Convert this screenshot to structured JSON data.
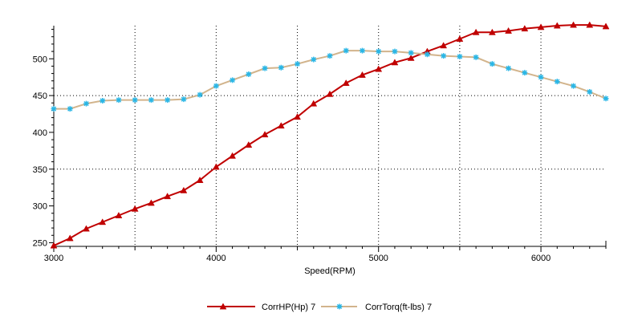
{
  "chart_data": {
    "type": "line",
    "xlabel": "Speed(RPM)",
    "ylabel": "",
    "xlim": [
      3000,
      6400
    ],
    "ylim": [
      245,
      545
    ],
    "x_ticks": [
      3000,
      4000,
      5000,
      6000
    ],
    "y_ticks": [
      250,
      300,
      350,
      400,
      450,
      500
    ],
    "grid": "dotted vertical at 3500,4000,4500,5000,5500,6000; dotted horizontal at 350,450",
    "legend_position": "bottom",
    "series": [
      {
        "name": "CorrHP(Hp)  7",
        "color": "#c00000",
        "marker": "triangle",
        "x": [
          3000,
          3100,
          3200,
          3300,
          3400,
          3500,
          3600,
          3700,
          3800,
          3900,
          4000,
          4100,
          4200,
          4300,
          4400,
          4500,
          4600,
          4700,
          4800,
          4900,
          5000,
          5100,
          5200,
          5300,
          5400,
          5500,
          5600,
          5700,
          5800,
          5900,
          6000,
          6100,
          6200,
          6300,
          6400
        ],
        "values": [
          246,
          256,
          269,
          278,
          287,
          296,
          304,
          313,
          321,
          335,
          353,
          368,
          383,
          397,
          409,
          421,
          439,
          452,
          467,
          478,
          486,
          495,
          501,
          510,
          518,
          527,
          536,
          536,
          538,
          541,
          543,
          545,
          546,
          546,
          544
        ]
      },
      {
        "name": "CorrTorq(ft-lbs)  7",
        "color": "#d2b48c",
        "marker_color": "#29b6e6",
        "marker": "star",
        "x": [
          3000,
          3100,
          3200,
          3300,
          3400,
          3500,
          3600,
          3700,
          3800,
          3900,
          4000,
          4100,
          4200,
          4300,
          4400,
          4500,
          4600,
          4700,
          4800,
          4900,
          5000,
          5100,
          5200,
          5300,
          5400,
          5500,
          5600,
          5700,
          5800,
          5900,
          6000,
          6100,
          6200,
          6300,
          6400
        ],
        "values": [
          432,
          432,
          439,
          443,
          444,
          444,
          444,
          444,
          445,
          451,
          463,
          471,
          479,
          487,
          488,
          493,
          499,
          504,
          511,
          511,
          510,
          510,
          508,
          506,
          504,
          503,
          502,
          493,
          487,
          481,
          475,
          469,
          463,
          455,
          446
        ]
      }
    ]
  }
}
